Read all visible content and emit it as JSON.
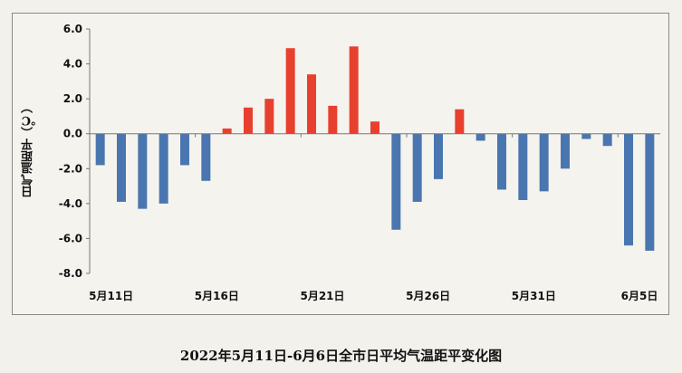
{
  "caption": "2022年5月11日-6月6日全市日平均气温距平变化图",
  "chart_data": {
    "type": "bar",
    "title": "",
    "ylabel": "日气温距平（℃）",
    "xlabel": "",
    "ylim": [
      -8.0,
      6.0
    ],
    "y_ticks": [
      "6.0",
      "4.0",
      "2.0",
      "0.0",
      "-2.0",
      "-4.0",
      "-6.0",
      "-8.0"
    ],
    "x_tick_labels": [
      {
        "index": 0,
        "label": "5月11日"
      },
      {
        "index": 5,
        "label": "5月16日"
      },
      {
        "index": 10,
        "label": "5月21日"
      },
      {
        "index": 15,
        "label": "5月26日"
      },
      {
        "index": 20,
        "label": "5月31日"
      },
      {
        "index": 25,
        "label": "6月5日"
      }
    ],
    "categories": [
      "5月11日",
      "5月12日",
      "5月13日",
      "5月14日",
      "5月15日",
      "5月16日",
      "5月17日",
      "5月18日",
      "5月19日",
      "5月20日",
      "5月21日",
      "5月22日",
      "5月23日",
      "5月24日",
      "5月25日",
      "5月26日",
      "5月27日",
      "5月28日",
      "5月29日",
      "5月30日",
      "5月31日",
      "6月1日",
      "6月2日",
      "6月3日",
      "6月4日",
      "6月5日",
      "6月6日"
    ],
    "values": [
      -1.8,
      -3.9,
      -4.3,
      -4.0,
      -1.8,
      -2.7,
      0.3,
      1.5,
      2.0,
      4.9,
      3.4,
      1.6,
      5.0,
      0.7,
      -5.5,
      -3.9,
      -2.6,
      1.4,
      -0.4,
      -3.2,
      -3.8,
      -3.3,
      -2.0,
      -0.3,
      -0.7,
      -6.4,
      -6.7
    ],
    "colors": {
      "positive": "#e8402f",
      "negative": "#4a76b0"
    },
    "grid": false,
    "legend": "none"
  }
}
